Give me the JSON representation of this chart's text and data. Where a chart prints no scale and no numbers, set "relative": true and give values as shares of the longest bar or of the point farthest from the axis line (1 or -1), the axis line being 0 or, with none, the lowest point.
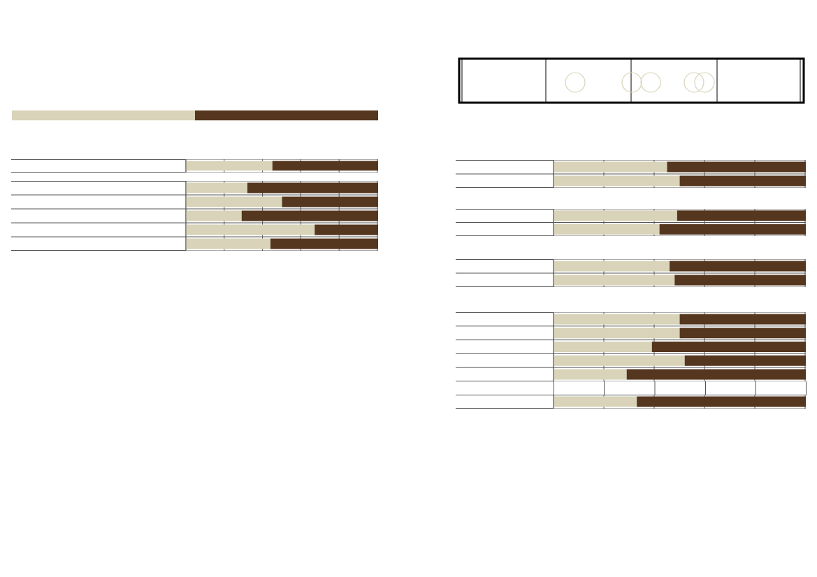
{
  "chart_data": [
    {
      "type": "bar",
      "orientation": "horizontal",
      "stacked": true,
      "relative": true,
      "categories": [
        null
      ],
      "series": [
        {
          "color": "#d8d3b9",
          "values": [
            0.5
          ]
        },
        {
          "color": "#55361f",
          "values": [
            0.5
          ]
        }
      ]
    },
    {
      "type": "bar",
      "orientation": "horizontal",
      "stacked": true,
      "relative": true,
      "grid": true,
      "categories": [
        null
      ],
      "series": [
        {
          "color": "#d8d3b9",
          "values": [
            0.45
          ]
        },
        {
          "color": "#55361f",
          "values": [
            0.55
          ]
        }
      ]
    },
    {
      "type": "bar",
      "orientation": "horizontal",
      "stacked": true,
      "relative": true,
      "grid": true,
      "categories": [
        null,
        null,
        null,
        null,
        null
      ],
      "series": [
        {
          "color": "#d8d3b9",
          "values": [
            0.32,
            0.5,
            0.29,
            0.67,
            0.44
          ]
        },
        {
          "color": "#55361f",
          "values": [
            0.68,
            0.5,
            0.71,
            0.33,
            0.56
          ]
        }
      ]
    },
    {
      "type": "bar",
      "orientation": "horizontal",
      "stacked": true,
      "relative": true,
      "grid": true,
      "categories": [
        null,
        null
      ],
      "series": [
        {
          "color": "#d8d3b9",
          "values": [
            0.45,
            0.5
          ]
        },
        {
          "color": "#55361f",
          "values": [
            0.55,
            0.5
          ]
        }
      ]
    },
    {
      "type": "bar",
      "orientation": "horizontal",
      "stacked": true,
      "relative": true,
      "grid": true,
      "categories": [
        null,
        null
      ],
      "series": [
        {
          "color": "#d8d3b9",
          "values": [
            0.49,
            0.42
          ]
        },
        {
          "color": "#55361f",
          "values": [
            0.51,
            0.58
          ]
        }
      ]
    },
    {
      "type": "bar",
      "orientation": "horizontal",
      "stacked": true,
      "relative": true,
      "grid": true,
      "categories": [
        null,
        null
      ],
      "series": [
        {
          "color": "#d8d3b9",
          "values": [
            0.46,
            0.48
          ]
        },
        {
          "color": "#55361f",
          "values": [
            0.54,
            0.52
          ]
        }
      ]
    },
    {
      "type": "bar",
      "orientation": "horizontal",
      "stacked": true,
      "relative": true,
      "grid": true,
      "categories": [
        null,
        null,
        null,
        null,
        null
      ],
      "series": [
        {
          "color": "#d8d3b9",
          "values": [
            0.5,
            0.5,
            0.39,
            0.52,
            0.29
          ]
        },
        {
          "color": "#55361f",
          "values": [
            0.5,
            0.5,
            0.61,
            0.48,
            0.71
          ]
        }
      ]
    },
    {
      "type": "bar",
      "orientation": "horizontal",
      "stacked": true,
      "relative": true,
      "grid": true,
      "categories": [
        null
      ],
      "series": [
        {
          "color": "#d8d3b9",
          "values": [
            0.33
          ]
        },
        {
          "color": "#55361f",
          "values": [
            0.67
          ]
        }
      ]
    }
  ]
}
